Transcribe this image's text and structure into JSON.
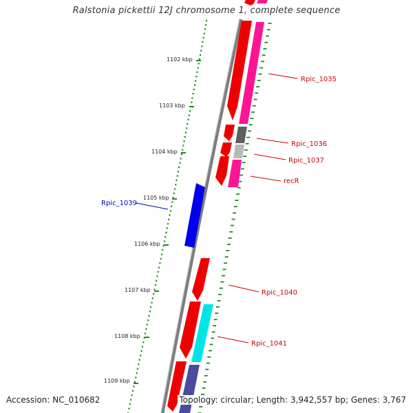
{
  "title": "Ralstonia pickettii 12J chromosome 1, complete sequence",
  "footer": {
    "accession": "Accession: NC_010682",
    "topology": "Topology: circular; Length: 3,942,557 bp; Genes: 3,767"
  },
  "colors": {
    "backbone": "#8a8a8a",
    "scale_ticks": "#1e8a1e",
    "forward_gene": "#ee0000",
    "forward_cds": "#ff1493",
    "reverse_gene": "#0000ee",
    "reverse_cds": "#00e5e5",
    "label_forward": "#cc0000",
    "label_reverse": "#0000cc",
    "pseudo_dark": "#606060",
    "pseudo_light": "#b8b8b8",
    "cds_navy": "#4a4aa0"
  },
  "scale_labels": [
    "1102 kbp",
    "1103 kbp",
    "1104 kbp",
    "1105 kbp",
    "1106 kbp",
    "1107 kbp",
    "1108 kbp",
    "1109 kbp"
  ],
  "gene_labels": {
    "rpic_1035": "Rpic_1035",
    "rpic_1036": "Rpic_1036",
    "rpic_1037": "Rpic_1037",
    "recr": "recR",
    "rpic_1039": "Rpic_1039",
    "rpic_1040": "Rpic_1040",
    "rpic_1041": "Rpic_1041"
  }
}
